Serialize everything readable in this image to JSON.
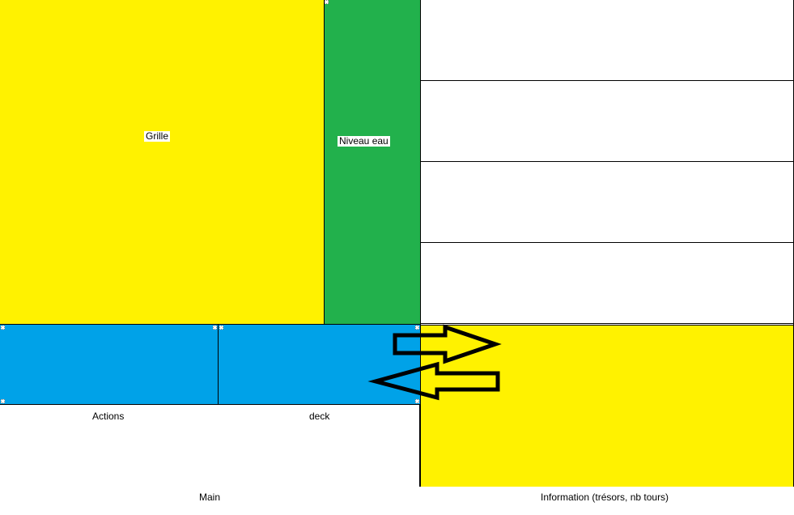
{
  "panels": {
    "grille_label": "Grille",
    "niveau_eau_label": "Niveau eau",
    "actions_label": "Actions",
    "deck_label": "deck",
    "main_label": "Main",
    "information_label": "Information (trésors, nb tours)"
  },
  "right_column_slots": 4,
  "colors": {
    "yellow": "#fff200",
    "green": "#22b14c",
    "blue": "#00a2e8",
    "white": "#ffffff",
    "border": "#000000"
  },
  "arrows": [
    {
      "name": "arrow-right-icon",
      "direction": "right"
    },
    {
      "name": "arrow-left-icon",
      "direction": "left"
    }
  ]
}
